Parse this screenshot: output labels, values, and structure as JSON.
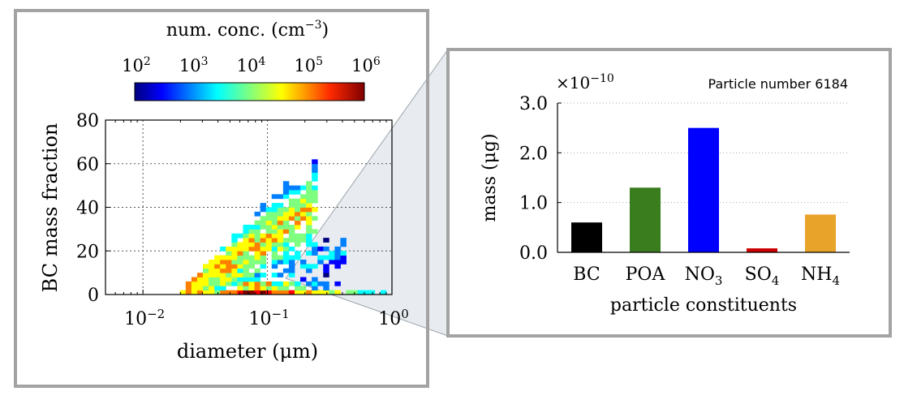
{
  "panels": {
    "left": {
      "colorbar": {
        "title": "num. conc. (cm",
        "title_exponent": "−3",
        "title_close": ")",
        "tick_labels": [
          {
            "base": "10",
            "exp": "2"
          },
          {
            "base": "10",
            "exp": "3"
          },
          {
            "base": "10",
            "exp": "4"
          },
          {
            "base": "10",
            "exp": "5"
          },
          {
            "base": "10",
            "exp": "6"
          }
        ]
      }
    }
  },
  "chart_data": [
    {
      "type": "heatmap",
      "xlabel": "diameter (μm)",
      "ylabel": "BC mass fraction",
      "x_scale": "log",
      "xlim": [
        0.005,
        1.0
      ],
      "ylim": [
        0,
        80
      ],
      "grid": true,
      "x_tick_labels": [
        {
          "base": "10",
          "exp": "−2",
          "value": 0.01
        },
        {
          "base": "10",
          "exp": "−1",
          "value": 0.1
        },
        {
          "base": "10",
          "exp": "0",
          "value": 1.0
        }
      ],
      "y_tick_labels": [
        "0",
        "20",
        "40",
        "60",
        "80"
      ],
      "y_ticks": [
        0,
        20,
        40,
        60,
        80
      ],
      "colorbar_scale": "log",
      "colorbar_range": [
        100,
        1000000
      ],
      "colormap": [
        "#00007f",
        "#0000ff",
        "#007fff",
        "#00ffff",
        "#7fff7f",
        "#ffff00",
        "#ff7f00",
        "#ff0000",
        "#7f0000"
      ]
    },
    {
      "type": "bar",
      "title": "Particle number 6184",
      "categories": [
        {
          "main": "BC",
          "sub": ""
        },
        {
          "main": "POA",
          "sub": ""
        },
        {
          "main": "NO",
          "sub": "3"
        },
        {
          "main": "SO",
          "sub": "4"
        },
        {
          "main": "NH",
          "sub": "4"
        }
      ],
      "values": [
        0.6,
        1.3,
        2.5,
        0.08,
        0.76
      ],
      "colors": [
        "#000000",
        "#3a7d1e",
        "#0000ff",
        "#cc0000",
        "#e8a32a"
      ],
      "xlabel": "particle constituents",
      "ylabel": "mass (μg)",
      "ylim": [
        0,
        3.0
      ],
      "y_tick_labels": [
        "0.0",
        "1.0",
        "2.0",
        "3.0"
      ],
      "y_ticks": [
        0,
        1,
        2,
        3
      ],
      "multiplier": {
        "base": "×10",
        "exp": "−10"
      },
      "grid": true
    }
  ]
}
